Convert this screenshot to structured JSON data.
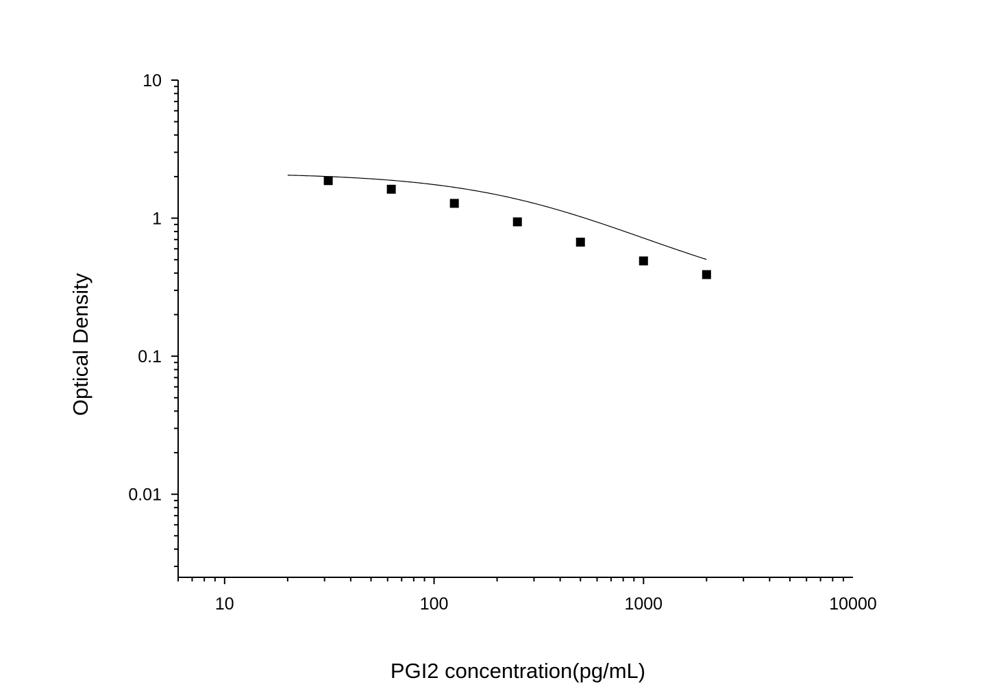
{
  "chart_data": {
    "type": "scatter",
    "title": "",
    "xlabel": "PGI2 concentration(pg/mL)",
    "ylabel": "Optical Density",
    "x_scale": "log",
    "y_scale": "log",
    "xlim": [
      6,
      10000
    ],
    "ylim": [
      0.0025,
      10
    ],
    "grid": false,
    "legend": "none",
    "x_tick_labels": [
      "10",
      "100",
      "1000",
      "10000"
    ],
    "y_tick_labels": [
      "10",
      "1",
      "0.1",
      "0.01"
    ],
    "series": [
      {
        "marker": "square",
        "x": [
          31.25,
          62.5,
          125,
          250,
          500,
          1000,
          2000
        ],
        "y": [
          1.87,
          1.62,
          1.28,
          0.94,
          0.67,
          0.49,
          0.39
        ]
      }
    ],
    "fit_curve": {
      "model": "4PL",
      "A": 2.13,
      "B": 1.07,
      "C": 363,
      "D": 0.24,
      "x_range": [
        20,
        2000
      ]
    },
    "colors": {
      "marker": "#000000",
      "line": "#000000",
      "axis": "#000000"
    }
  }
}
